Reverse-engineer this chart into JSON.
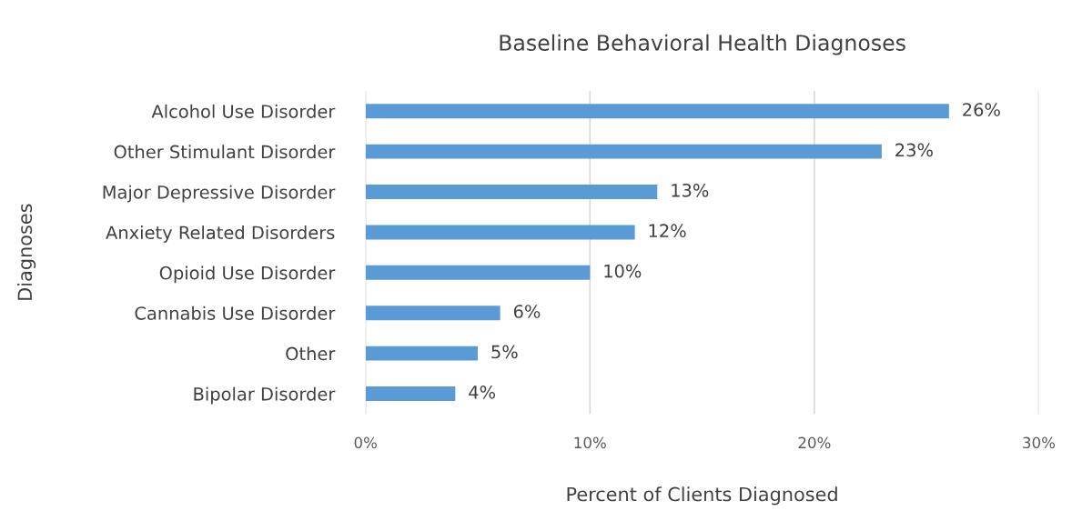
{
  "chart_data": {
    "type": "bar",
    "orientation": "horizontal",
    "title": "Baseline Behavioral Health Diagnoses",
    "xlabel": "Percent of Clients Diagnosed",
    "ylabel": "Diagnoses",
    "categories": [
      "Alcohol Use Disorder",
      "Other Stimulant Disorder",
      "Major Depressive Disorder",
      "Anxiety Related Disorders",
      "Opioid Use Disorder",
      "Cannabis Use Disorder",
      "Other",
      "Bipolar Disorder"
    ],
    "values": [
      26,
      23,
      13,
      12,
      10,
      6,
      5,
      4
    ],
    "value_labels": [
      "26%",
      "23%",
      "13%",
      "12%",
      "10%",
      "6%",
      "5%",
      "4%"
    ],
    "color": "#5b9bd5",
    "xlim": [
      0,
      30
    ],
    "xticks": [
      {
        "value": 0,
        "label": "0%"
      },
      {
        "value": 10,
        "label": "10%"
      },
      {
        "value": 20,
        "label": "20%"
      },
      {
        "value": 30,
        "label": "30%"
      }
    ],
    "grid": "x",
    "legend": false
  }
}
